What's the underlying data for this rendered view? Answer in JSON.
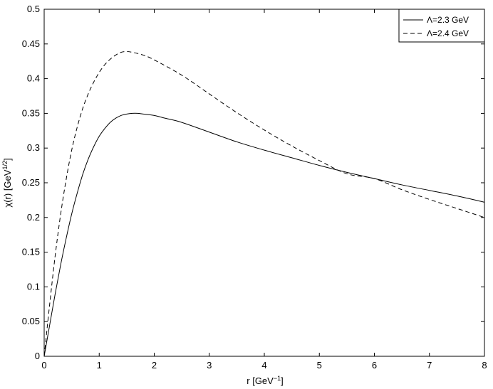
{
  "chart_data": {
    "type": "line",
    "xlabel": "r [GeV",
    "xlabel_sup": "−1",
    "xlabel_tail": "]",
    "ylabel": "χ(r) [GeV",
    "ylabel_sup": "1/2",
    "ylabel_tail": "]",
    "xlim": [
      0,
      8
    ],
    "ylim": [
      0,
      0.5
    ],
    "x_ticks": [
      0,
      1,
      2,
      3,
      4,
      5,
      6,
      7,
      8
    ],
    "x_tick_labels": [
      "0",
      "1",
      "2",
      "3",
      "4",
      "5",
      "6",
      "7",
      "8"
    ],
    "y_ticks": [
      0,
      0.05,
      0.1,
      0.15,
      0.2,
      0.25,
      0.3,
      0.35,
      0.4,
      0.45,
      0.5
    ],
    "y_tick_labels": [
      "0",
      "0.05",
      "0.1",
      "0.15",
      "0.2",
      "0.25",
      "0.3",
      "0.35",
      "0.4",
      "0.45",
      "0.5"
    ],
    "grid": false,
    "legend_position": "top-right",
    "series": [
      {
        "name": "Λ=2.3 GeV",
        "line_style": "solid",
        "color": "#000000",
        "x": [
          0,
          0.1,
          0.2,
          0.3,
          0.4,
          0.5,
          0.6,
          0.7,
          0.8,
          0.9,
          1.0,
          1.1,
          1.2,
          1.3,
          1.4,
          1.5,
          1.6,
          1.7,
          1.8,
          2.0,
          2.2,
          2.5,
          3.0,
          3.5,
          4.0,
          4.5,
          5.0,
          5.5,
          6.0,
          6.5,
          7.0,
          7.5,
          8.0
        ],
        "y": [
          0,
          0.045,
          0.09,
          0.132,
          0.17,
          0.205,
          0.235,
          0.262,
          0.284,
          0.302,
          0.317,
          0.328,
          0.337,
          0.343,
          0.347,
          0.349,
          0.35,
          0.35,
          0.349,
          0.347,
          0.343,
          0.337,
          0.323,
          0.309,
          0.297,
          0.286,
          0.275,
          0.265,
          0.256,
          0.247,
          0.239,
          0.231,
          0.222
        ]
      },
      {
        "name": "Λ=2.4 GeV",
        "line_style": "dashed",
        "color": "#000000",
        "x": [
          0,
          0.1,
          0.2,
          0.3,
          0.4,
          0.5,
          0.6,
          0.7,
          0.8,
          0.9,
          1.0,
          1.1,
          1.2,
          1.3,
          1.4,
          1.5,
          1.6,
          1.8,
          2.0,
          2.5,
          3.0,
          3.5,
          4.0,
          4.5,
          5.0,
          5.5,
          6.0,
          6.5,
          7.0,
          7.5,
          8.0
        ],
        "y": [
          0,
          0.075,
          0.145,
          0.205,
          0.255,
          0.297,
          0.33,
          0.357,
          0.378,
          0.395,
          0.409,
          0.42,
          0.428,
          0.434,
          0.438,
          0.439,
          0.438,
          0.434,
          0.427,
          0.405,
          0.378,
          0.351,
          0.326,
          0.303,
          0.282,
          0.263,
          0.256,
          0.24,
          0.226,
          0.213,
          0.2
        ]
      }
    ]
  }
}
